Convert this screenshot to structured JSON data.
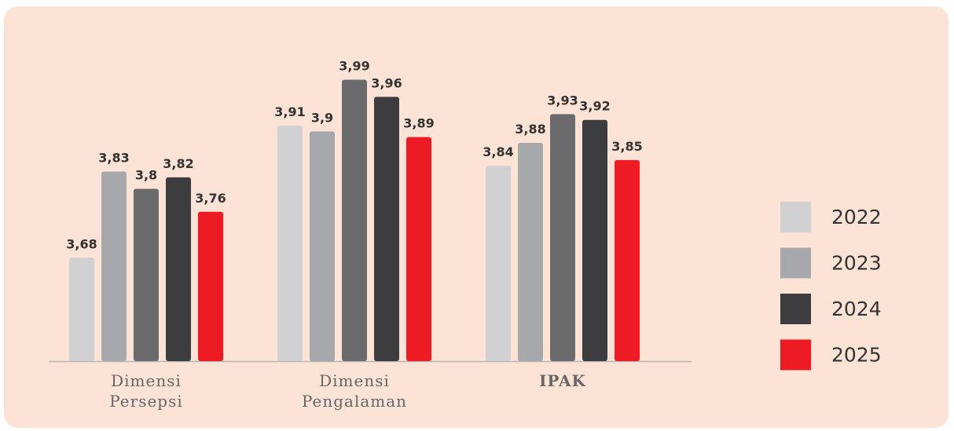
{
  "chart_data": {
    "type": "bar",
    "categories": [
      "Dimensi Persepsi",
      "Dimensi Pengalaman",
      "IPAK"
    ],
    "series": [
      {
        "name": "2022",
        "color": "#d1d1d3",
        "values": [
          3.68,
          3.91,
          3.84
        ],
        "value_labels": [
          "3,68",
          "3,91",
          "3,84"
        ]
      },
      {
        "name": "2023",
        "color": "#a7a8ab",
        "values": [
          3.83,
          3.9,
          3.88
        ],
        "value_labels": [
          "3,83",
          "3,9",
          "3,88"
        ]
      },
      {
        "color": "#6b6b6e",
        "values": [
          3.8,
          3.99,
          3.93
        ],
        "value_labels": [
          "3,8",
          "3,99",
          "3,93"
        ]
      },
      {
        "name": "2024",
        "color": "#3d3d3f",
        "values": [
          3.82,
          3.96,
          3.92
        ],
        "value_labels": [
          "3,82",
          "3,96",
          "3,92"
        ]
      },
      {
        "name": "2025",
        "color": "#ed1c24",
        "values": [
          3.76,
          3.89,
          3.85
        ],
        "value_labels": [
          "3,76",
          "3,89",
          "3,85"
        ]
      }
    ],
    "ylim": [
      3.5,
      4.1
    ],
    "legend": "right"
  }
}
